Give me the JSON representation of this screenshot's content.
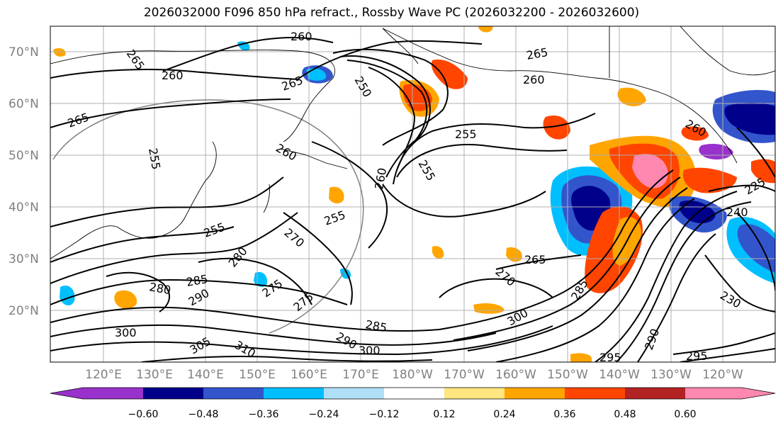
{
  "title": "2026032000 F096 850 hPa refract., Rossby Wave PC (2026032200 - 2026032600)",
  "lat_labels": [
    "70°N",
    "60°N",
    "50°N",
    "40°N",
    "30°N",
    "20°N"
  ],
  "lon_labels": [
    "120°E",
    "130°E",
    "140°E",
    "150°E",
    "160°E",
    "170°E",
    "180°W",
    "170°W",
    "160°W",
    "150°W",
    "140°W",
    "130°W",
    "120°W"
  ],
  "colorbar": {
    "colors": [
      "#9932CC",
      "#00008B",
      "#3355CC",
      "#00BFFF",
      "#B0E0F8",
      "#FFFFFF",
      "#FFE680",
      "#FFA500",
      "#FF4500",
      "#B22222",
      "#FF88B0"
    ],
    "tick_labels": [
      "−0.60",
      "−0.48",
      "−0.36",
      "−0.24",
      "−0.12",
      "0.12",
      "0.24",
      "0.36",
      "0.48",
      "0.60"
    ]
  },
  "contour_labels": [
    "265",
    "260",
    "265",
    "260",
    "265",
    "255",
    "250",
    "255",
    "260",
    "265",
    "260",
    "260",
    "255",
    "255",
    "270",
    "280",
    "275",
    "285",
    "290",
    "300",
    "305",
    "310",
    "290",
    "300",
    "285",
    "275",
    "280",
    "260",
    "265",
    "270",
    "255",
    "230",
    "240",
    "285",
    "295",
    "295",
    "290",
    "225",
    "300"
  ]
}
